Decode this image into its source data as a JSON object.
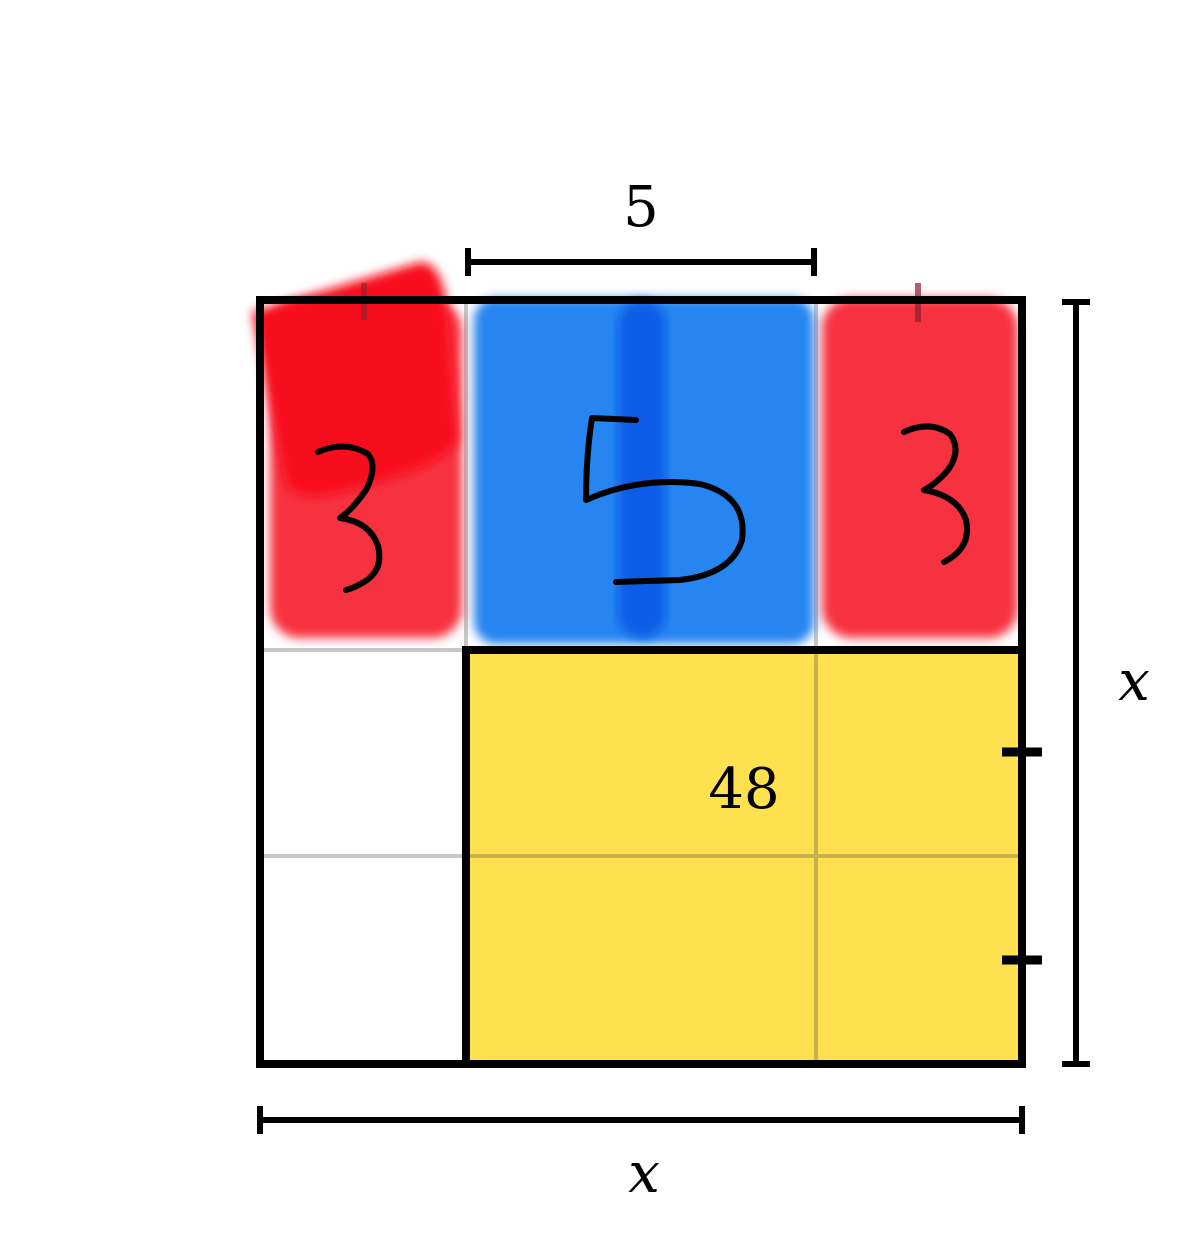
{
  "labels": {
    "top_dimension": "5",
    "right_dimension": "x",
    "bottom_dimension": "x",
    "area_label": "48",
    "left_strip_digit": "3",
    "middle_strip_digit": "5",
    "right_strip_digit": "3"
  },
  "colors": {
    "red_strip": "#f7313f",
    "red_patch": "#f8101e",
    "blue_strip": "#2585f0",
    "blue_stroke": "#0a5de8",
    "yellow_region": "#ffe150",
    "grid_line": "#c8c8c8",
    "grid_line_on_yellow": "#c9b24e",
    "outline": "#000000"
  }
}
